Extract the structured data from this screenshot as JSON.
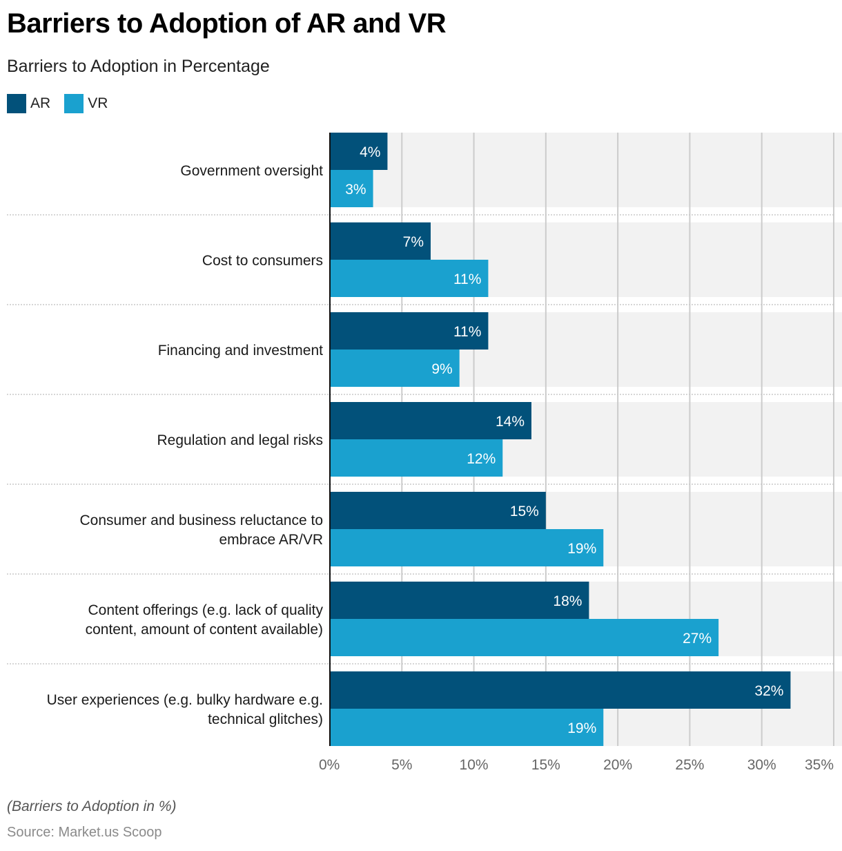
{
  "chart_data": {
    "type": "bar",
    "orientation": "horizontal",
    "title": "Barriers to Adoption of AR and VR",
    "subtitle": "Barriers to Adoption in Percentage",
    "xlabel": "",
    "ylabel": "",
    "xlim": [
      0,
      35
    ],
    "x_ticks": [
      0,
      5,
      10,
      15,
      20,
      25,
      30,
      35
    ],
    "x_tick_labels": [
      "0%",
      "5%",
      "10%",
      "15%",
      "20%",
      "25%",
      "30%",
      "35%"
    ],
    "grid": true,
    "legend_position": "top-left",
    "categories": [
      [
        "Government oversight"
      ],
      [
        "Cost to consumers"
      ],
      [
        "Financing and investment"
      ],
      [
        "Regulation and legal risks"
      ],
      [
        "Consumer and business reluctance to",
        "embrace AR/VR"
      ],
      [
        "Content offerings (e.g. lack of quality",
        "content, amount of content available)"
      ],
      [
        "User experiences (e.g. bulky hardware e.g.",
        "technical glitches)"
      ]
    ],
    "series": [
      {
        "name": "AR",
        "color": "#02517a",
        "values": [
          4,
          7,
          11,
          14,
          15,
          18,
          32
        ]
      },
      {
        "name": "VR",
        "color": "#1aa1cf",
        "values": [
          3,
          11,
          9,
          12,
          19,
          27,
          19
        ]
      }
    ],
    "value_suffix": "%"
  },
  "legend": [
    {
      "label": "AR",
      "color": "#02517a"
    },
    {
      "label": "VR",
      "color": "#1aa1cf"
    }
  ],
  "footnote": "(Barriers to Adoption in %)",
  "source": "Source: Market.us Scoop"
}
